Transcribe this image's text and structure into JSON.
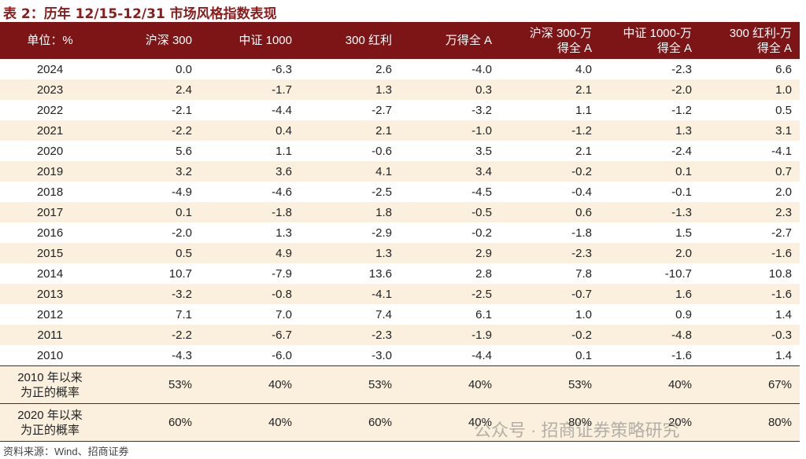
{
  "header": {
    "title": "表 2：历年 12/15-12/31 市场风格指数表现"
  },
  "table": {
    "columns": [
      [
        "单位：%"
      ],
      [
        "沪深 300"
      ],
      [
        "中证 1000"
      ],
      [
        "300 红利"
      ],
      [
        "万得全 A"
      ],
      [
        "沪深 300-万",
        "得全 A"
      ],
      [
        "中证 1000-万",
        "得全 A"
      ],
      [
        "300 红利-万",
        "得全 A"
      ]
    ],
    "rows": [
      [
        "2024",
        "0.0",
        "-6.3",
        "2.6",
        "-4.0",
        "4.0",
        "-2.3",
        "6.6"
      ],
      [
        "2023",
        "2.4",
        "-1.7",
        "1.3",
        "0.3",
        "2.1",
        "-2.0",
        "1.0"
      ],
      [
        "2022",
        "-2.1",
        "-4.4",
        "-2.7",
        "-3.2",
        "1.1",
        "-1.2",
        "0.5"
      ],
      [
        "2021",
        "-2.2",
        "0.4",
        "2.1",
        "-1.0",
        "-1.2",
        "1.3",
        "3.1"
      ],
      [
        "2020",
        "5.6",
        "1.1",
        "-0.6",
        "3.5",
        "2.1",
        "-2.4",
        "-4.1"
      ],
      [
        "2019",
        "3.2",
        "3.6",
        "4.1",
        "3.4",
        "-0.2",
        "0.1",
        "0.7"
      ],
      [
        "2018",
        "-4.9",
        "-4.6",
        "-2.5",
        "-4.5",
        "-0.4",
        "-0.1",
        "2.0"
      ],
      [
        "2017",
        "0.1",
        "-1.8",
        "1.8",
        "-0.5",
        "0.6",
        "-1.3",
        "2.3"
      ],
      [
        "2016",
        "-2.0",
        "1.3",
        "-2.9",
        "-0.2",
        "-1.8",
        "1.5",
        "-2.7"
      ],
      [
        "2015",
        "0.5",
        "4.9",
        "1.3",
        "2.9",
        "-2.3",
        "2.0",
        "-1.6"
      ],
      [
        "2014",
        "10.7",
        "-7.9",
        "13.6",
        "2.8",
        "7.8",
        "-10.7",
        "10.8"
      ],
      [
        "2013",
        "-3.2",
        "-0.8",
        "-4.1",
        "-2.5",
        "-0.7",
        "1.6",
        "-1.6"
      ],
      [
        "2012",
        "7.1",
        "7.0",
        "7.4",
        "6.1",
        "1.0",
        "0.9",
        "1.4"
      ],
      [
        "2011",
        "-2.2",
        "-6.7",
        "-2.3",
        "-1.9",
        "-0.2",
        "-4.8",
        "-0.3"
      ],
      [
        "2010",
        "-4.3",
        "-6.0",
        "-3.0",
        "-4.4",
        "0.1",
        "-1.6",
        "1.4"
      ]
    ],
    "summary": [
      {
        "label": [
          "2010 年以来",
          "为正的概率"
        ],
        "values": [
          "53%",
          "40%",
          "53%",
          "40%",
          "53%",
          "40%",
          "67%"
        ]
      },
      {
        "label": [
          "2020 年以来",
          "为正的概率"
        ],
        "values": [
          "60%",
          "40%",
          "60%",
          "40%",
          "80%",
          "20%",
          "80%"
        ]
      }
    ]
  },
  "footer": {
    "source": "资料来源：Wind、招商证券",
    "watermark": "公众号 · 招商证券策略研究"
  }
}
